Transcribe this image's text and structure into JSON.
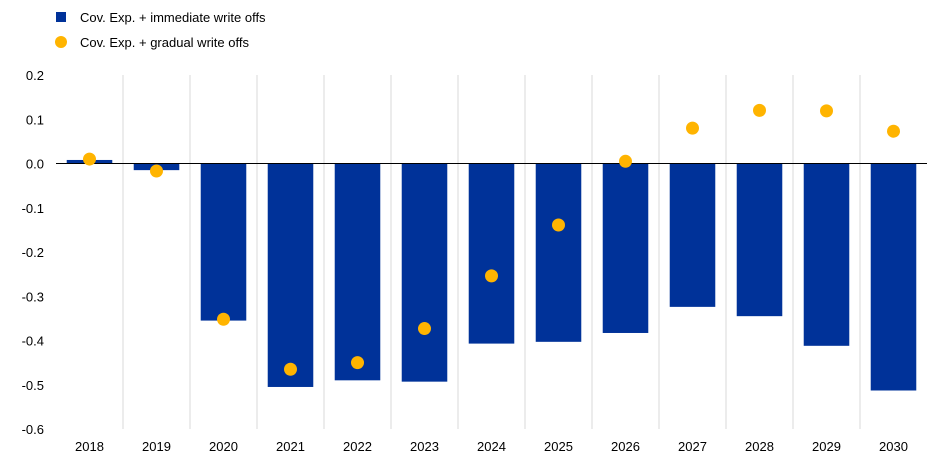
{
  "chart_data": {
    "type": "bar",
    "categories": [
      "2018",
      "2019",
      "2020",
      "2021",
      "2022",
      "2023",
      "2024",
      "2025",
      "2026",
      "2027",
      "2028",
      "2029",
      "2030"
    ],
    "series": [
      {
        "name": "Cov. Exp. + immediate write offs",
        "kind": "bar",
        "color": "#003299",
        "values": [
          0.008,
          -0.015,
          -0.355,
          -0.505,
          -0.49,
          -0.493,
          -0.407,
          -0.403,
          -0.383,
          -0.324,
          -0.345,
          -0.412,
          -0.513
        ]
      },
      {
        "name": "Cov. Exp. + gradual write offs",
        "kind": "scatter",
        "color": "#FFB400",
        "values": [
          0.01,
          -0.017,
          -0.352,
          -0.465,
          -0.45,
          -0.373,
          -0.254,
          -0.139,
          0.005,
          0.08,
          0.12,
          0.119,
          0.073
        ]
      }
    ],
    "yticks": [
      "0.2",
      "0.1",
      "0.0",
      "-0.1",
      "-0.2",
      "-0.3",
      "-0.4",
      "-0.5",
      "-0.6"
    ],
    "ylim": [
      -0.6,
      0.2
    ],
    "grid": "vertical",
    "legend_position": "top-left",
    "title": "",
    "xlabel": "",
    "ylabel": ""
  }
}
